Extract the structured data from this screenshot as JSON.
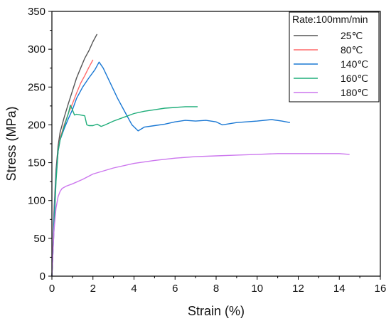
{
  "chart_data": {
    "type": "line",
    "xlabel": "Strain (%)",
    "ylabel": "Stress (MPa)",
    "xlim": [
      0,
      16
    ],
    "ylim": [
      0,
      350
    ],
    "xticks": [
      0,
      2,
      4,
      6,
      8,
      10,
      12,
      14,
      16
    ],
    "yticks": [
      0,
      50,
      100,
      150,
      200,
      250,
      300,
      350
    ],
    "grid": false,
    "legend": {
      "title": "Rate:100mm/min",
      "placement": "top-right"
    },
    "series": [
      {
        "name": "25℃",
        "color": "#555555",
        "x": [
          0,
          0.05,
          0.1,
          0.2,
          0.3,
          0.4,
          0.6,
          0.8,
          1.0,
          1.2,
          1.4,
          1.6,
          1.8,
          2.0,
          2.2
        ],
        "y": [
          0,
          40,
          85,
          140,
          172,
          190,
          210,
          228,
          245,
          262,
          275,
          288,
          298,
          310,
          320
        ]
      },
      {
        "name": "80℃",
        "color": "#ff6a6a",
        "x": [
          0,
          0.05,
          0.1,
          0.2,
          0.3,
          0.4,
          0.6,
          0.8,
          1.0,
          1.2,
          1.4,
          1.6,
          1.8,
          2.0
        ],
        "y": [
          0,
          35,
          80,
          130,
          165,
          182,
          200,
          215,
          228,
          242,
          255,
          265,
          276,
          286
        ]
      },
      {
        "name": "140℃",
        "color": "#1a78d4",
        "x": [
          0,
          0.05,
          0.1,
          0.2,
          0.3,
          0.4,
          0.6,
          0.8,
          1.0,
          1.2,
          1.5,
          1.8,
          2.1,
          2.3,
          2.5,
          2.8,
          3.2,
          3.6,
          3.9,
          4.2,
          4.5,
          5.0,
          5.5,
          6.0,
          6.5,
          7.0,
          7.5,
          8.0,
          8.3,
          9.0,
          10.0,
          10.7,
          11.2,
          11.6
        ],
        "y": [
          0,
          30,
          75,
          130,
          165,
          180,
          195,
          208,
          220,
          235,
          250,
          262,
          273,
          283,
          275,
          258,
          235,
          215,
          200,
          192,
          197,
          199,
          201,
          204,
          206,
          205,
          206,
          204,
          200,
          203,
          205,
          207,
          205,
          203
        ]
      },
      {
        "name": "160℃",
        "color": "#1fad7a",
        "x": [
          0,
          0.1,
          0.2,
          0.3,
          0.4,
          0.6,
          0.8,
          0.9,
          1.0,
          1.1,
          1.2,
          1.4,
          1.6,
          1.7,
          1.8,
          2.0,
          2.2,
          2.4,
          2.6,
          3.0,
          3.5,
          4.0,
          4.5,
          5.0,
          5.5,
          6.0,
          6.5,
          7.0,
          7.1
        ],
        "y": [
          0,
          60,
          125,
          165,
          180,
          198,
          215,
          226,
          220,
          213,
          214,
          213,
          212,
          200,
          199,
          199,
          201,
          198,
          200,
          205,
          210,
          215,
          218,
          220,
          222,
          223,
          224,
          224,
          224
        ]
      },
      {
        "name": "180℃",
        "color": "#cc77ee",
        "x": [
          0,
          0.05,
          0.1,
          0.2,
          0.3,
          0.4,
          0.5,
          0.7,
          1.0,
          1.5,
          2.0,
          3.0,
          4.0,
          5.0,
          6.0,
          7.0,
          8.0,
          9.0,
          10.0,
          11.0,
          12.0,
          13.0,
          14.0,
          14.5
        ],
        "y": [
          0,
          30,
          60,
          90,
          105,
          112,
          116,
          119,
          122,
          128,
          135,
          143,
          149,
          153,
          156,
          158,
          159,
          160,
          161,
          162,
          162,
          162,
          162,
          161
        ]
      }
    ]
  }
}
